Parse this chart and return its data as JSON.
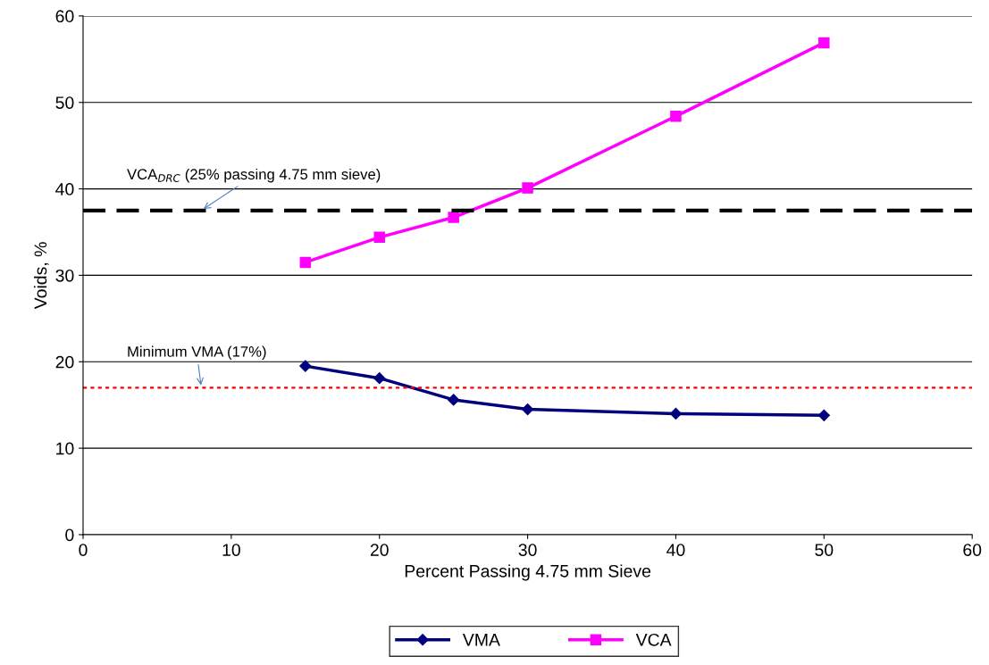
{
  "chart_data": {
    "type": "line",
    "xlabel": "Percent Passing 4.75 mm Sieve",
    "ylabel": "Voids, %",
    "x": [
      15,
      20,
      25,
      30,
      40,
      50
    ],
    "series": [
      {
        "name": "VMA",
        "color": "#00007f",
        "marker": "diamond",
        "values": [
          19.5,
          18.1,
          15.6,
          14.5,
          14.0,
          13.8
        ]
      },
      {
        "name": "VCA",
        "color": "#ff00ff",
        "marker": "square",
        "values": [
          31.5,
          34.4,
          36.7,
          40.1,
          48.4,
          56.9
        ]
      }
    ],
    "ref_lines": [
      {
        "axis": "y",
        "value": 37.5,
        "label": "VCA$_{DRC}$ (25% passing 4.75 mm sieve)",
        "color": "#000000",
        "line_style": "dashed"
      },
      {
        "axis": "y",
        "value": 17,
        "label": "Minimum VMA (17%)",
        "color": "#ff0000",
        "line_style": "dotted"
      }
    ],
    "xlim": [
      0,
      60
    ],
    "xticks": [
      0,
      10,
      20,
      30,
      40,
      50,
      60
    ],
    "ylim": [
      0,
      60
    ],
    "yticks": [
      0,
      10,
      20,
      30,
      40,
      50,
      60
    ],
    "grid": "y",
    "legend": "bottom"
  }
}
